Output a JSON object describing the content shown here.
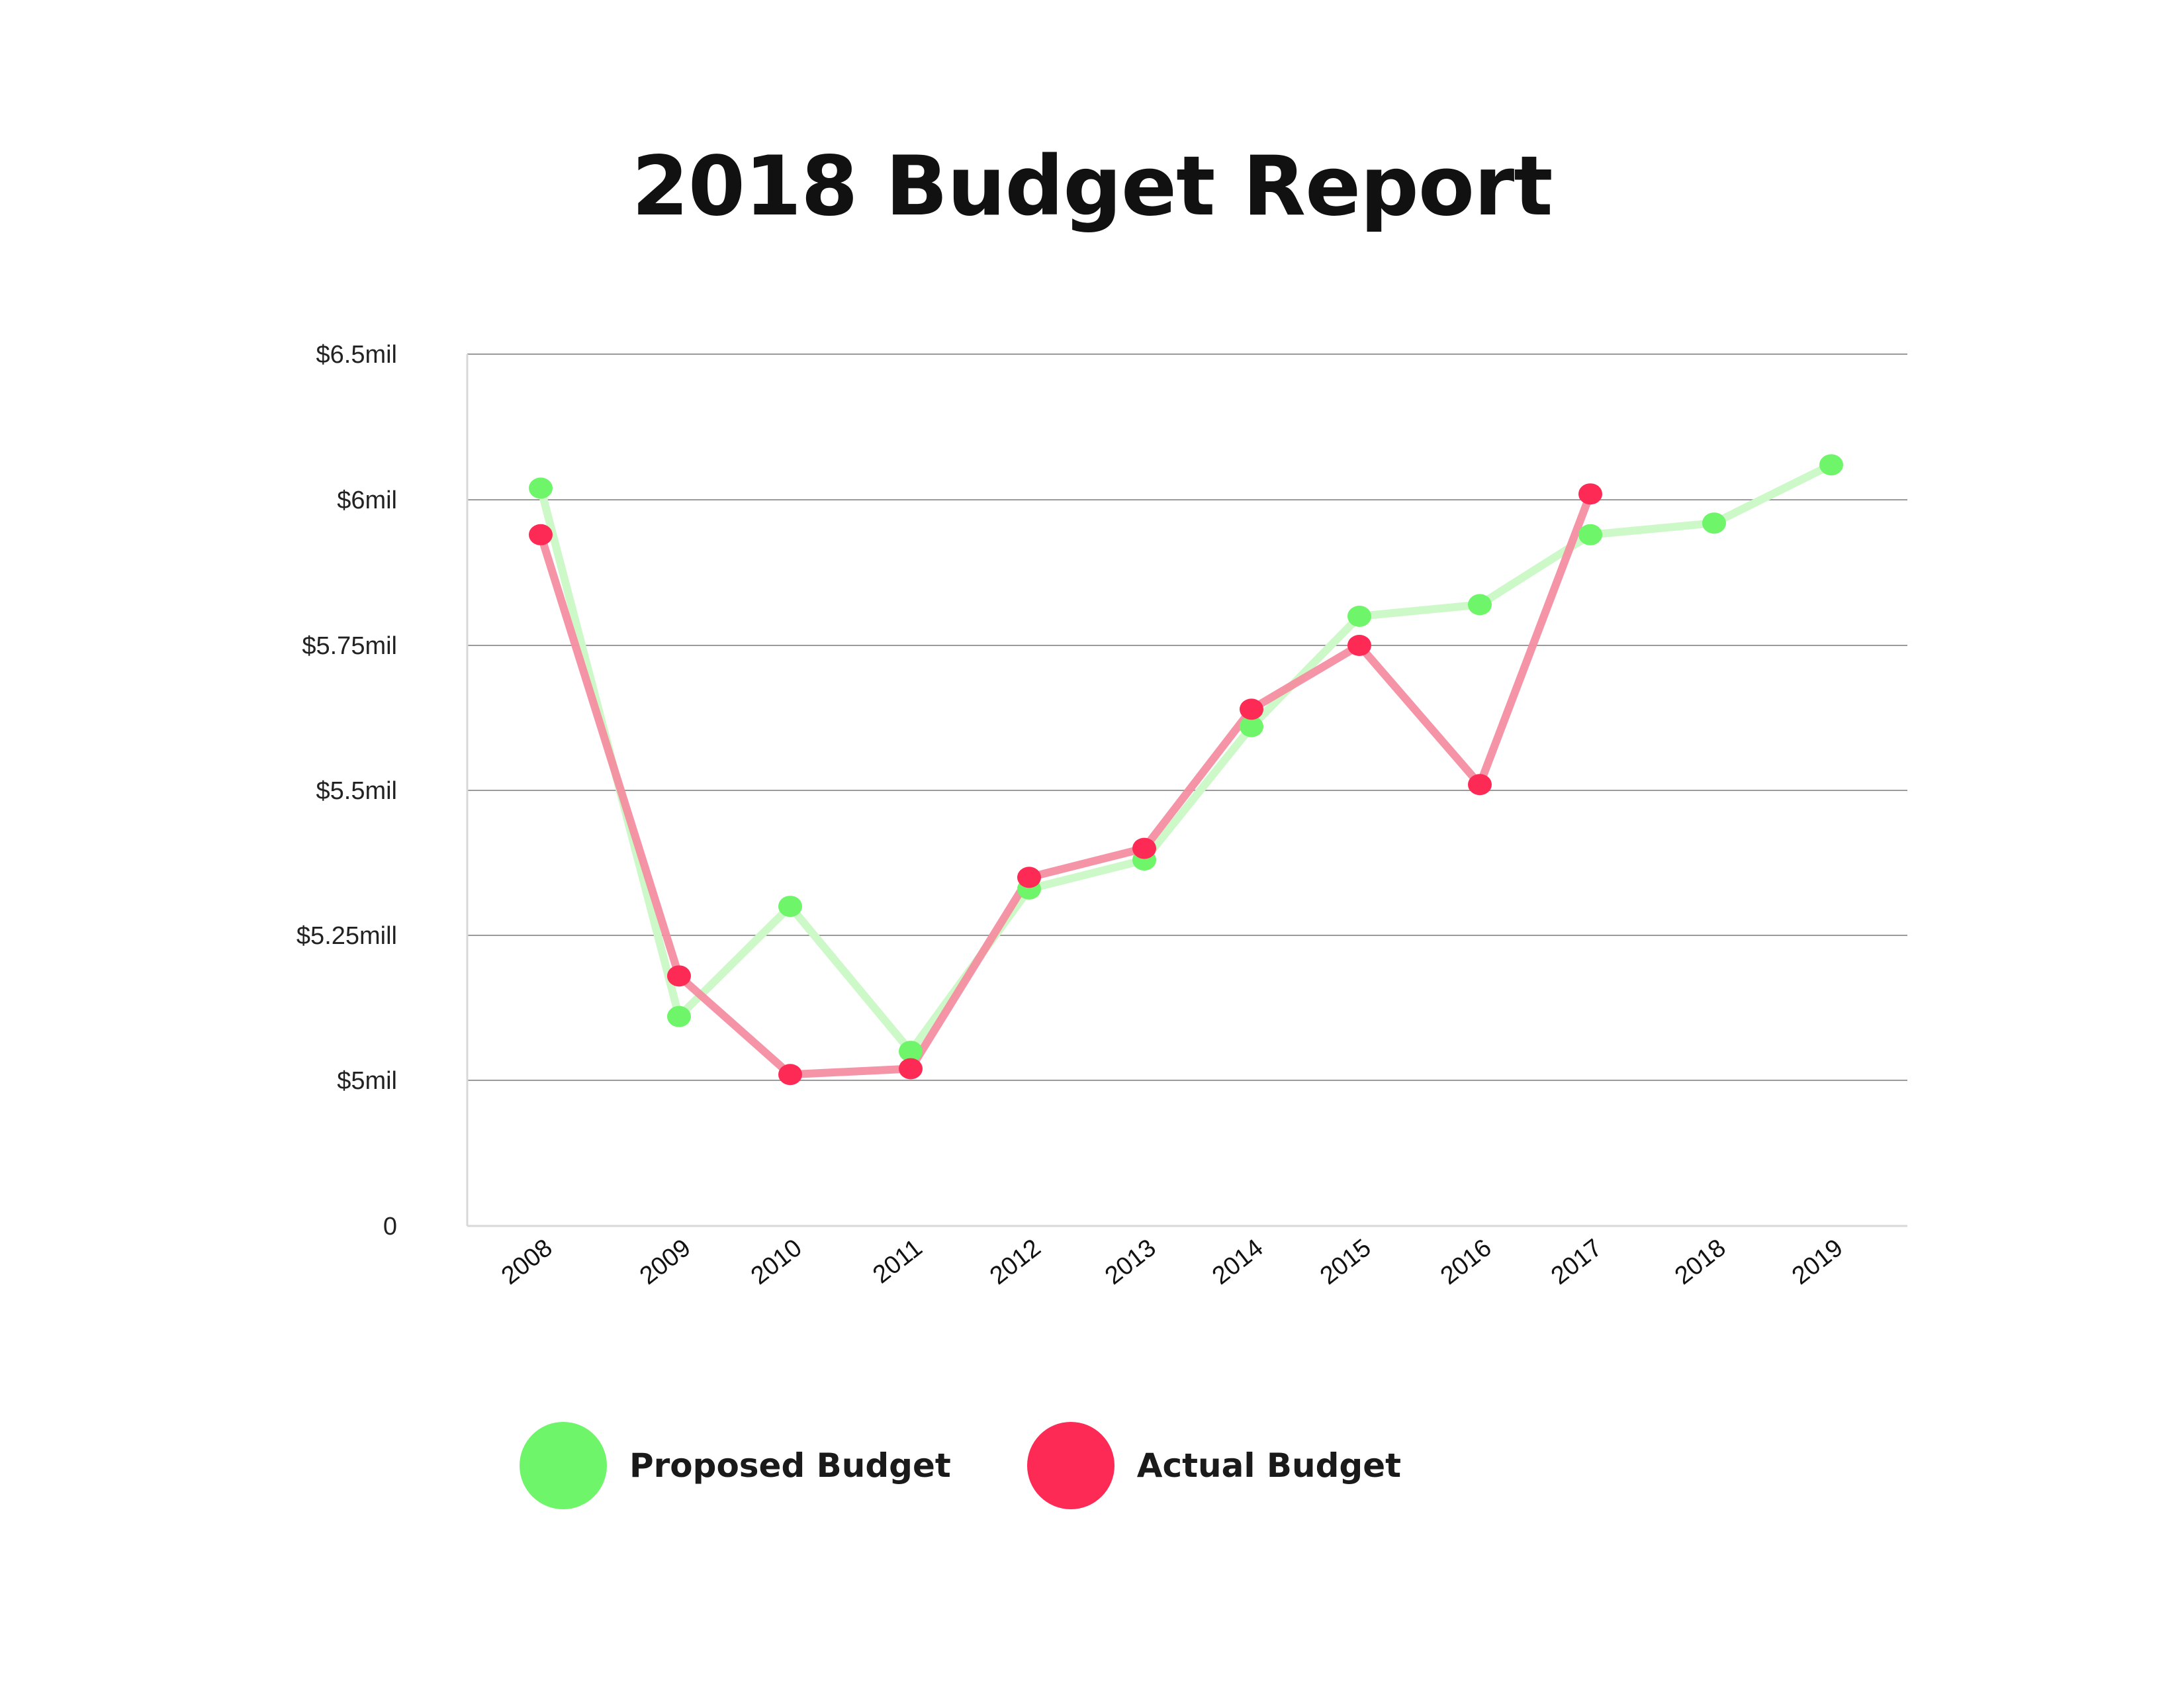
{
  "colors": {
    "proposed": "#6ef56a",
    "proposed_line": "#cdf8c8",
    "actual": "#fc2a55",
    "actual_line": "#f48ea1",
    "grid": "#9a9a9a",
    "axis": "#d8d8d8"
  },
  "chart_data": {
    "type": "line",
    "title": "2018 Budget Report",
    "xlabel": "",
    "ylabel": "",
    "categories": [
      "2008",
      "2009",
      "2010",
      "2011",
      "2012",
      "2013",
      "2014",
      "2015",
      "2016",
      "2017",
      "2018",
      "2019"
    ],
    "y_ticks": [
      {
        "value": 0,
        "label": "0"
      },
      {
        "value": 5.0,
        "label": "$5mil"
      },
      {
        "value": 5.25,
        "label": "$5.25mill"
      },
      {
        "value": 5.5,
        "label": "$5.5mil"
      },
      {
        "value": 5.75,
        "label": "$5.75mil"
      },
      {
        "value": 6.0,
        "label": "$6mil"
      },
      {
        "value": 6.5,
        "label": "$6.5mil"
      }
    ],
    "grid": true,
    "legend_position": "bottom",
    "series": [
      {
        "name": "Proposed Budget",
        "values": [
          6.04,
          5.11,
          5.3,
          5.05,
          5.33,
          5.38,
          5.61,
          5.8,
          5.82,
          5.94,
          5.96,
          6.12
        ]
      },
      {
        "name": "Actual Budget",
        "values": [
          5.94,
          5.18,
          5.01,
          5.02,
          5.35,
          5.4,
          5.64,
          5.75,
          5.51,
          6.02,
          null,
          null
        ]
      }
    ]
  }
}
